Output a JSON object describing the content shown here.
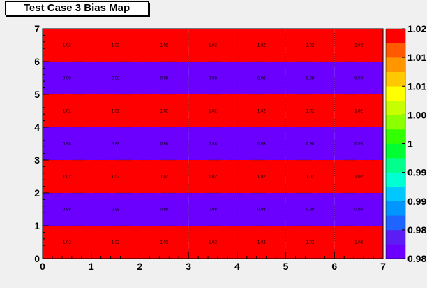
{
  "chart_data": {
    "type": "heatmap",
    "title": "Test Case 3 Bias Map",
    "xlabel": "",
    "ylabel": "",
    "xlim": [
      0,
      7
    ],
    "ylim": [
      0,
      7
    ],
    "x_ticks": [
      "0",
      "1",
      "2",
      "3",
      "4",
      "5",
      "6",
      "7"
    ],
    "y_ticks": [
      "0",
      "1",
      "2",
      "3",
      "4",
      "5",
      "6",
      "7"
    ],
    "grid": true,
    "x_bins": 7,
    "y_bins": 7,
    "rows": [
      {
        "y_bin": 0,
        "values": [
          1.02,
          1.02,
          1.02,
          1.02,
          1.02,
          1.02,
          1.02
        ],
        "labels": [
          "1.02",
          "1.02",
          "1.02",
          "1.02",
          "1.02",
          "1.02",
          "1.02"
        ]
      },
      {
        "y_bin": 1,
        "values": [
          0.98,
          0.98,
          0.98,
          0.98,
          0.98,
          0.98,
          0.98
        ],
        "labels": [
          "0.98",
          "0.98",
          "0.98",
          "0.98",
          "0.98",
          "0.98",
          "0.98"
        ]
      },
      {
        "y_bin": 2,
        "values": [
          1.02,
          1.02,
          1.02,
          1.02,
          1.02,
          1.02,
          1.02
        ],
        "labels": [
          "1.02",
          "1.02",
          "1.02",
          "1.02",
          "1.02",
          "1.02",
          "1.02"
        ]
      },
      {
        "y_bin": 3,
        "values": [
          0.98,
          0.98,
          0.98,
          0.98,
          0.98,
          0.98,
          0.98
        ],
        "labels": [
          "0.98",
          "0.98",
          "0.98",
          "0.98",
          "0.98",
          "0.98",
          "0.98"
        ]
      },
      {
        "y_bin": 4,
        "values": [
          1.02,
          1.02,
          1.02,
          1.02,
          1.02,
          1.02,
          1.02
        ],
        "labels": [
          "1.02",
          "1.02",
          "1.02",
          "1.02",
          "1.02",
          "1.02",
          "1.02"
        ]
      },
      {
        "y_bin": 5,
        "values": [
          0.98,
          0.98,
          0.98,
          0.98,
          0.98,
          0.98,
          0.98
        ],
        "labels": [
          "0.98",
          "0.98",
          "0.98",
          "0.98",
          "0.98",
          "0.98",
          "0.98"
        ]
      },
      {
        "y_bin": 6,
        "values": [
          1.02,
          1.02,
          1.02,
          1.02,
          1.02,
          1.02,
          1.02
        ],
        "labels": [
          "1.02",
          "1.02",
          "1.02",
          "1.02",
          "1.02",
          "1.02",
          "1.02"
        ]
      }
    ],
    "colorbar": {
      "range": [
        0.98,
        1.02
      ],
      "labels": [
        "1.02",
        "1.01",
        "1.01",
        "1.00",
        "1",
        "0.99",
        "0.99",
        "0.98",
        "0.98"
      ],
      "colors": [
        "#6c00ff",
        "#5b1df4",
        "#1e64ff",
        "#0096ff",
        "#00c8ff",
        "#00ffd2",
        "#00ff8c",
        "#00ff32",
        "#32ff00",
        "#8cff00",
        "#c8ff00",
        "#ffff00",
        "#ffc800",
        "#ff9600",
        "#ff5a00",
        "#ff0000"
      ]
    }
  }
}
